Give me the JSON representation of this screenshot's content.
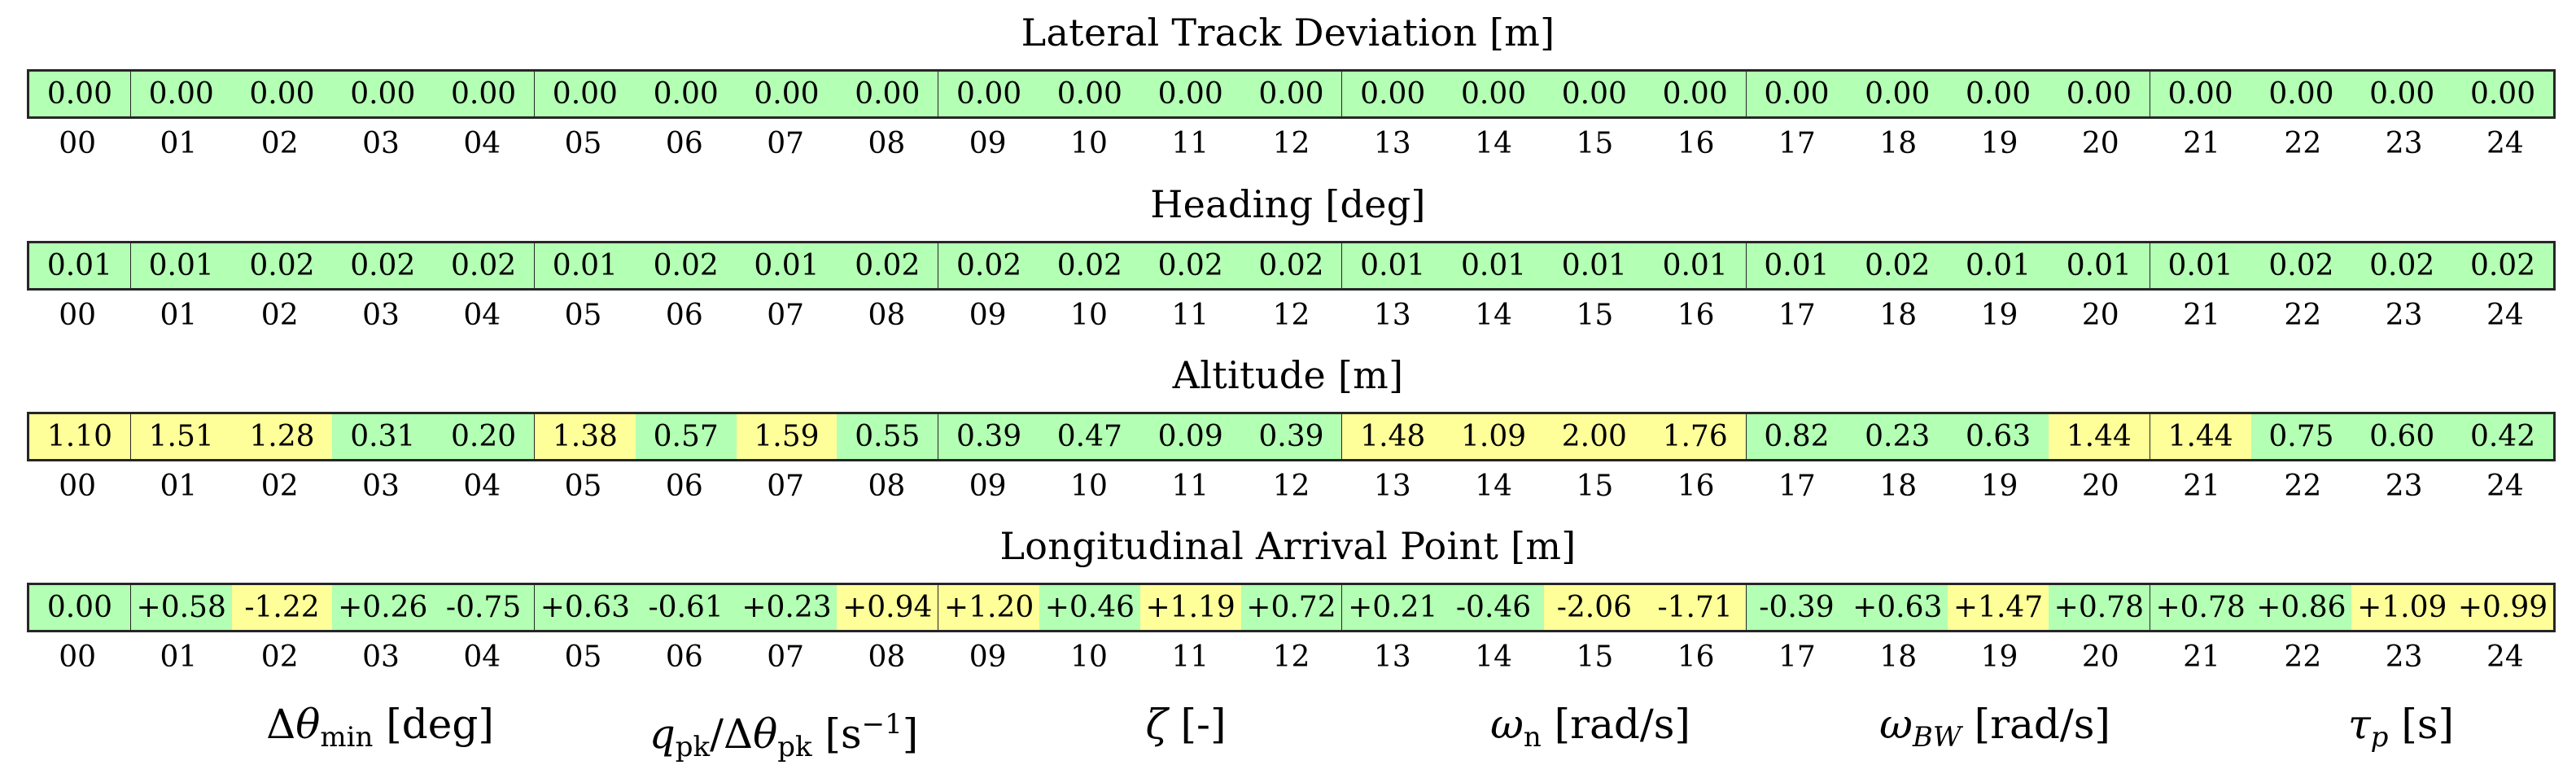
{
  "chart_data": {
    "type": "heatmap",
    "title": "",
    "index_labels": [
      "00",
      "01",
      "02",
      "03",
      "04",
      "05",
      "06",
      "07",
      "08",
      "09",
      "10",
      "11",
      "12",
      "13",
      "14",
      "15",
      "16",
      "17",
      "18",
      "19",
      "20",
      "21",
      "22",
      "23",
      "24"
    ],
    "group_boundaries_after_index": [
      "00",
      "04",
      "08",
      "12",
      "16",
      "20"
    ],
    "legend": {
      "green": "#b3ffb3",
      "yellow": "#ffff99"
    },
    "panels": [
      {
        "title": "Lateral Track Deviation [m]",
        "values": [
          "0.00",
          "0.00",
          "0.00",
          "0.00",
          "0.00",
          "0.00",
          "0.00",
          "0.00",
          "0.00",
          "0.00",
          "0.00",
          "0.00",
          "0.00",
          "0.00",
          "0.00",
          "0.00",
          "0.00",
          "0.00",
          "0.00",
          "0.00",
          "0.00",
          "0.00",
          "0.00",
          "0.00",
          "0.00"
        ],
        "colors": [
          "green",
          "green",
          "green",
          "green",
          "green",
          "green",
          "green",
          "green",
          "green",
          "green",
          "green",
          "green",
          "green",
          "green",
          "green",
          "green",
          "green",
          "green",
          "green",
          "green",
          "green",
          "green",
          "green",
          "green",
          "green"
        ]
      },
      {
        "title": "Heading [deg]",
        "values": [
          "0.01",
          "0.01",
          "0.02",
          "0.02",
          "0.02",
          "0.01",
          "0.02",
          "0.01",
          "0.02",
          "0.02",
          "0.02",
          "0.02",
          "0.02",
          "0.01",
          "0.01",
          "0.01",
          "0.01",
          "0.01",
          "0.02",
          "0.01",
          "0.01",
          "0.01",
          "0.02",
          "0.02",
          "0.02"
        ],
        "colors": [
          "green",
          "green",
          "green",
          "green",
          "green",
          "green",
          "green",
          "green",
          "green",
          "green",
          "green",
          "green",
          "green",
          "green",
          "green",
          "green",
          "green",
          "green",
          "green",
          "green",
          "green",
          "green",
          "green",
          "green",
          "green"
        ]
      },
      {
        "title": "Altitude [m]",
        "values": [
          "1.10",
          "1.51",
          "1.28",
          "0.31",
          "0.20",
          "1.38",
          "0.57",
          "1.59",
          "0.55",
          "0.39",
          "0.47",
          "0.09",
          "0.39",
          "1.48",
          "1.09",
          "2.00",
          "1.76",
          "0.82",
          "0.23",
          "0.63",
          "1.44",
          "1.44",
          "0.75",
          "0.60",
          "0.42"
        ],
        "colors": [
          "yellow",
          "yellow",
          "yellow",
          "green",
          "green",
          "yellow",
          "green",
          "yellow",
          "green",
          "green",
          "green",
          "green",
          "green",
          "yellow",
          "yellow",
          "yellow",
          "yellow",
          "green",
          "green",
          "green",
          "yellow",
          "yellow",
          "green",
          "green",
          "green"
        ]
      },
      {
        "title": "Longitudinal Arrival Point [m]",
        "values": [
          "0.00",
          "+0.58",
          "-1.22",
          "+0.26",
          "-0.75",
          "+0.63",
          "-0.61",
          "+0.23",
          "+0.94",
          "+1.20",
          "+0.46",
          "+1.19",
          "+0.72",
          "+0.21",
          "-0.46",
          "-2.06",
          "-1.71",
          "-0.39",
          "+0.63",
          "+1.47",
          "+0.78",
          "+0.78",
          "+0.86",
          "+1.09",
          "+0.99"
        ],
        "colors": [
          "green",
          "green",
          "yellow",
          "green",
          "green",
          "green",
          "green",
          "green",
          "yellow",
          "yellow",
          "green",
          "yellow",
          "green",
          "green",
          "green",
          "yellow",
          "yellow",
          "green",
          "green",
          "yellow",
          "green",
          "green",
          "green",
          "yellow",
          "yellow"
        ]
      }
    ],
    "group_labels": [
      {
        "group": "01-04",
        "label": "Δθ_min [deg]"
      },
      {
        "group": "05-08",
        "label": "q_pk/Δθ_pk [s^-1]"
      },
      {
        "group": "09-12",
        "label": "ζ [-]"
      },
      {
        "group": "13-16",
        "label": "ω_n [rad/s]"
      },
      {
        "group": "17-20",
        "label": "ω_BW [rad/s]"
      },
      {
        "group": "21-24",
        "label": "τ_p [s]"
      }
    ]
  },
  "labels": {
    "dtheta": {
      "sym": "Δ",
      "theta": "θ",
      "sub": "min",
      "unit": " [deg]"
    },
    "qpk": {
      "q": "q",
      "sub1": "pk",
      "slash": "/Δ",
      "theta": "θ",
      "sub2": "pk",
      "unit_open": " [s",
      "sup": "−1",
      "unit_close": "]"
    },
    "zeta": {
      "sym": "ζ",
      "unit": " [-]"
    },
    "omegan": {
      "sym": "ω",
      "sub": "n",
      "unit": " [rad/s]"
    },
    "omegabw": {
      "sym": "ω",
      "sub": "BW",
      "unit": " [rad/s]"
    },
    "taup": {
      "sym": "τ",
      "sub": "p",
      "unit": " [s]"
    }
  }
}
